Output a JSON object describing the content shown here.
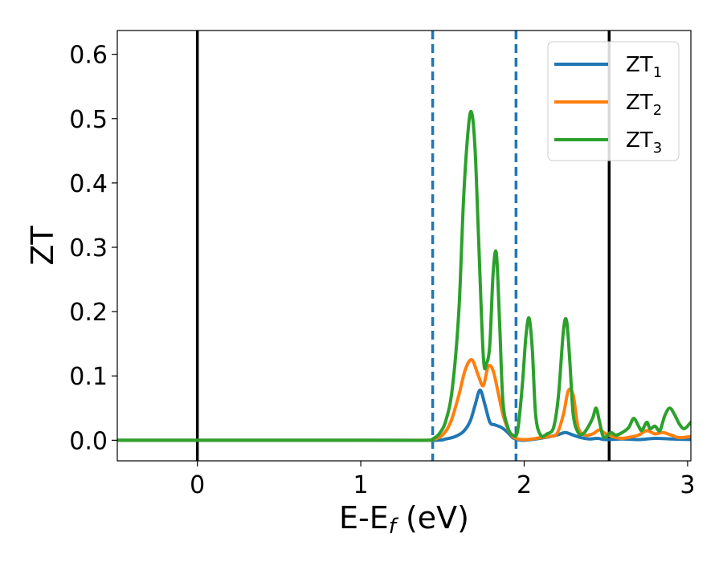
{
  "chart_data": {
    "type": "line",
    "title": "",
    "xlabel": "E-E",
    "xlabel_sub": "f",
    "xlabel_unit": " (eV)",
    "ylabel": "ZT",
    "xlim": [
      -0.49,
      3.02
    ],
    "ylim": [
      -0.032,
      0.637
    ],
    "xticks": [
      0,
      1,
      2,
      3
    ],
    "yticks": [
      0.0,
      0.1,
      0.2,
      0.3,
      0.4,
      0.5,
      0.6
    ],
    "xtick_labels": [
      "0",
      "1",
      "2",
      "3"
    ],
    "ytick_labels": [
      "0.0",
      "0.1",
      "0.2",
      "0.3",
      "0.4",
      "0.5",
      "0.6"
    ],
    "grid": false,
    "legend_position": "top-right",
    "vlines": [
      {
        "x": 0.0,
        "style": "solid",
        "color": "#000000"
      },
      {
        "x": 1.44,
        "style": "dashed",
        "color": "#1f77b4"
      },
      {
        "x": 1.95,
        "style": "dashed",
        "color": "#1f77b4"
      },
      {
        "x": 2.52,
        "style": "solid",
        "color": "#000000"
      }
    ],
    "series": [
      {
        "name": "ZT",
        "name_sub": "1",
        "color": "#1f77b4",
        "x": [
          -0.49,
          1.0,
          1.44,
          1.52,
          1.58,
          1.63,
          1.67,
          1.7,
          1.73,
          1.76,
          1.79,
          1.82,
          1.86,
          1.9,
          1.93,
          1.96,
          2.0,
          2.1,
          2.2,
          2.25,
          2.3,
          2.35,
          2.4,
          2.45,
          2.5,
          2.6,
          2.7,
          2.8,
          2.9,
          3.02
        ],
        "y": [
          0.0,
          0.0,
          0.0,
          0.002,
          0.006,
          0.014,
          0.03,
          0.055,
          0.078,
          0.055,
          0.028,
          0.024,
          0.02,
          0.012,
          0.004,
          0.001,
          0.0,
          0.003,
          0.008,
          0.012,
          0.008,
          0.004,
          0.002,
          0.003,
          0.001,
          0.002,
          0.001,
          0.003,
          0.002,
          0.001
        ]
      },
      {
        "name": "ZT",
        "name_sub": "2",
        "color": "#ff7f0e",
        "x": [
          -0.49,
          1.0,
          1.4,
          1.44,
          1.5,
          1.55,
          1.6,
          1.64,
          1.68,
          1.72,
          1.75,
          1.78,
          1.81,
          1.84,
          1.87,
          1.9,
          1.93,
          1.96,
          2.0,
          2.05,
          2.1,
          2.15,
          2.2,
          2.24,
          2.27,
          2.3,
          2.33,
          2.37,
          2.42,
          2.46,
          2.5,
          2.55,
          2.6,
          2.65,
          2.7,
          2.75,
          2.8,
          2.85,
          2.9,
          2.95,
          3.02
        ],
        "y": [
          0.0,
          0.0,
          0.0,
          0.001,
          0.008,
          0.028,
          0.07,
          0.11,
          0.125,
          0.1,
          0.085,
          0.115,
          0.108,
          0.075,
          0.04,
          0.018,
          0.006,
          0.002,
          0.001,
          0.002,
          0.004,
          0.006,
          0.01,
          0.04,
          0.077,
          0.07,
          0.02,
          0.008,
          0.01,
          0.016,
          0.01,
          0.005,
          0.003,
          0.005,
          0.008,
          0.015,
          0.01,
          0.012,
          0.008,
          0.004,
          0.006
        ]
      },
      {
        "name": "ZT",
        "name_sub": "3",
        "color": "#2ca02c",
        "x": [
          -0.49,
          1.0,
          1.4,
          1.44,
          1.48,
          1.52,
          1.56,
          1.6,
          1.63,
          1.66,
          1.68,
          1.7,
          1.72,
          1.75,
          1.77,
          1.79,
          1.81,
          1.83,
          1.85,
          1.87,
          1.9,
          1.93,
          1.96,
          1.99,
          2.01,
          2.03,
          2.05,
          2.07,
          2.1,
          2.14,
          2.18,
          2.21,
          2.24,
          2.26,
          2.28,
          2.3,
          2.33,
          2.36,
          2.39,
          2.42,
          2.44,
          2.46,
          2.48,
          2.5,
          2.53,
          2.56,
          2.6,
          2.64,
          2.67,
          2.7,
          2.72,
          2.75,
          2.77,
          2.8,
          2.83,
          2.86,
          2.89,
          2.92,
          2.95,
          2.98,
          3.02
        ],
        "y": [
          0.0,
          0.0,
          0.0,
          0.002,
          0.01,
          0.03,
          0.08,
          0.2,
          0.38,
          0.49,
          0.508,
          0.45,
          0.32,
          0.13,
          0.12,
          0.15,
          0.26,
          0.29,
          0.18,
          0.06,
          0.02,
          0.008,
          0.015,
          0.09,
          0.16,
          0.19,
          0.14,
          0.04,
          0.008,
          0.01,
          0.02,
          0.07,
          0.17,
          0.185,
          0.12,
          0.04,
          0.012,
          0.01,
          0.02,
          0.035,
          0.05,
          0.03,
          0.008,
          0.005,
          0.012,
          0.008,
          0.012,
          0.02,
          0.034,
          0.022,
          0.015,
          0.028,
          0.018,
          0.022,
          0.015,
          0.038,
          0.05,
          0.04,
          0.025,
          0.018,
          0.028
        ]
      }
    ]
  }
}
